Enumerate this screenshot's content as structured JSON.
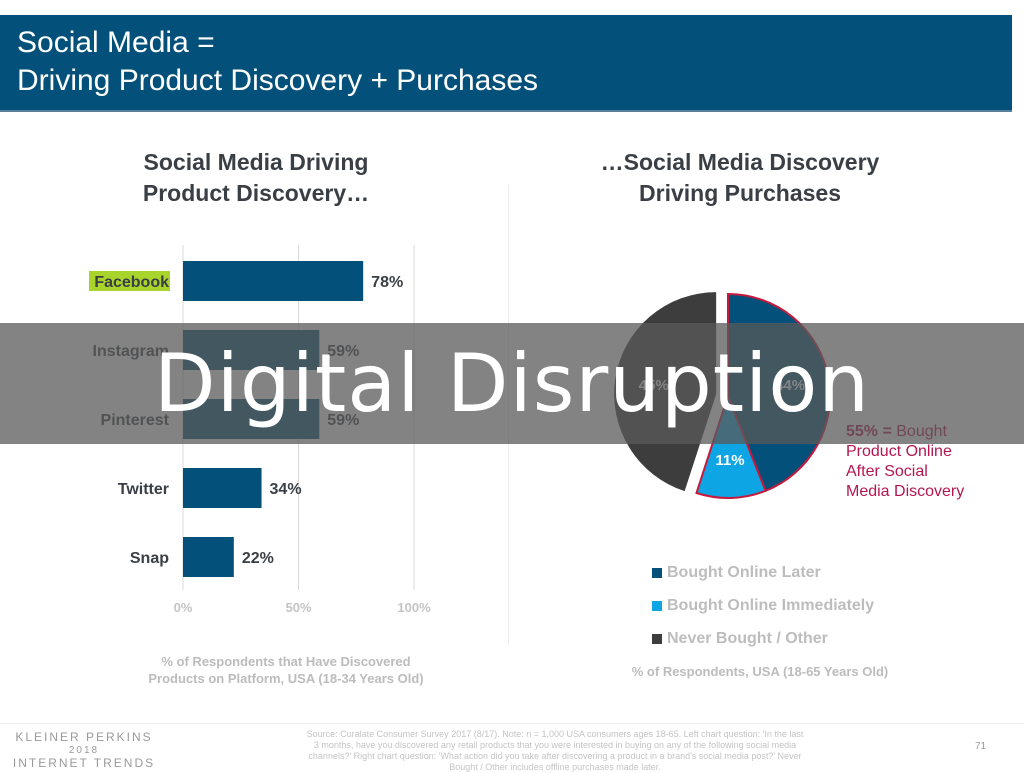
{
  "slide": {
    "title_line1": "Social Media =",
    "title_line2": "Driving Product Discovery + Purchases",
    "page_number": "71"
  },
  "overlay": {
    "text": "Digital Disruption"
  },
  "left_chart": {
    "heading_line1": "Social Media Driving",
    "heading_line2": "Product Discovery…",
    "note_line1": "% of Respondents that Have Discovered",
    "note_line2": "Products on Platform, USA (18-34 Years Old)",
    "highlight_color": "#a8d42b"
  },
  "right_chart": {
    "heading_line1": "…Social Media Discovery",
    "heading_line2": "Driving Purchases",
    "callout_bold": "55% =",
    "callout_line1_rest": " Bought",
    "callout_line2": "Product Online",
    "callout_line3": "After Social",
    "callout_line4": "Media Discovery",
    "callout_color": "#b5164f",
    "note": "% of Respondents, USA (18-65 Years Old)"
  },
  "chart_data": [
    {
      "type": "bar",
      "orientation": "horizontal",
      "title": "Social Media Driving Product Discovery…",
      "categories": [
        "Facebook",
        "Instagram",
        "Pinterest",
        "Twitter",
        "Snap"
      ],
      "values": [
        78,
        59,
        59,
        34,
        22
      ],
      "value_labels": [
        "78%",
        "59%",
        "59%",
        "34%",
        "22%"
      ],
      "highlighted_category": "Facebook",
      "xlabel": "% of Respondents that Have Discovered Products on Platform, USA (18-34 Years Old)",
      "ylabel": "",
      "xlim": [
        0,
        100
      ],
      "xticks": [
        0,
        50,
        100
      ],
      "xtick_labels": [
        "0%",
        "50%",
        "100%"
      ],
      "grid": true,
      "bar_color": "#03507a"
    },
    {
      "type": "pie",
      "title": "…Social Media Discovery Driving Purchases",
      "slices": [
        {
          "name": "Bought Online Later",
          "value": 44,
          "label": "44%",
          "color": "#03507a"
        },
        {
          "name": "Bought Online Immediately",
          "value": 11,
          "label": "11%",
          "color": "#0ea5e4"
        },
        {
          "name": "Never Bought / Other",
          "value": 45,
          "label": "45%",
          "color": "#3d3d3d",
          "exploded": true
        }
      ],
      "highlight_outline_color": "#c8193c",
      "highlighted_slices": [
        "Bought Online Later",
        "Bought Online Immediately"
      ],
      "annotation": "55% = Bought Product Online After Social Media Discovery",
      "legend": [
        "Bought Online Later",
        "Bought Online Immediately",
        "Never Bought / Other"
      ],
      "legend_position": "bottom",
      "xlabel": "% of Respondents, USA (18-65 Years Old)"
    }
  ],
  "footer": {
    "logo_line1": "KLEINER PERKINS",
    "logo_line2": "2018",
    "logo_line3": "INTERNET TRENDS",
    "source_text": "Source: Curalate Consumer Survey 2017 (8/17).  Note: n = 1,000 USA consumers ages 18-65. Left chart question: 'In the last 3 months, have you discovered any retail products that you were interested in buying on any of the following social media channels?' Right chart question: 'What action did you take after discovering a product in a brand's social media post?' Never Bought / Other includes offline purchases made later."
  }
}
